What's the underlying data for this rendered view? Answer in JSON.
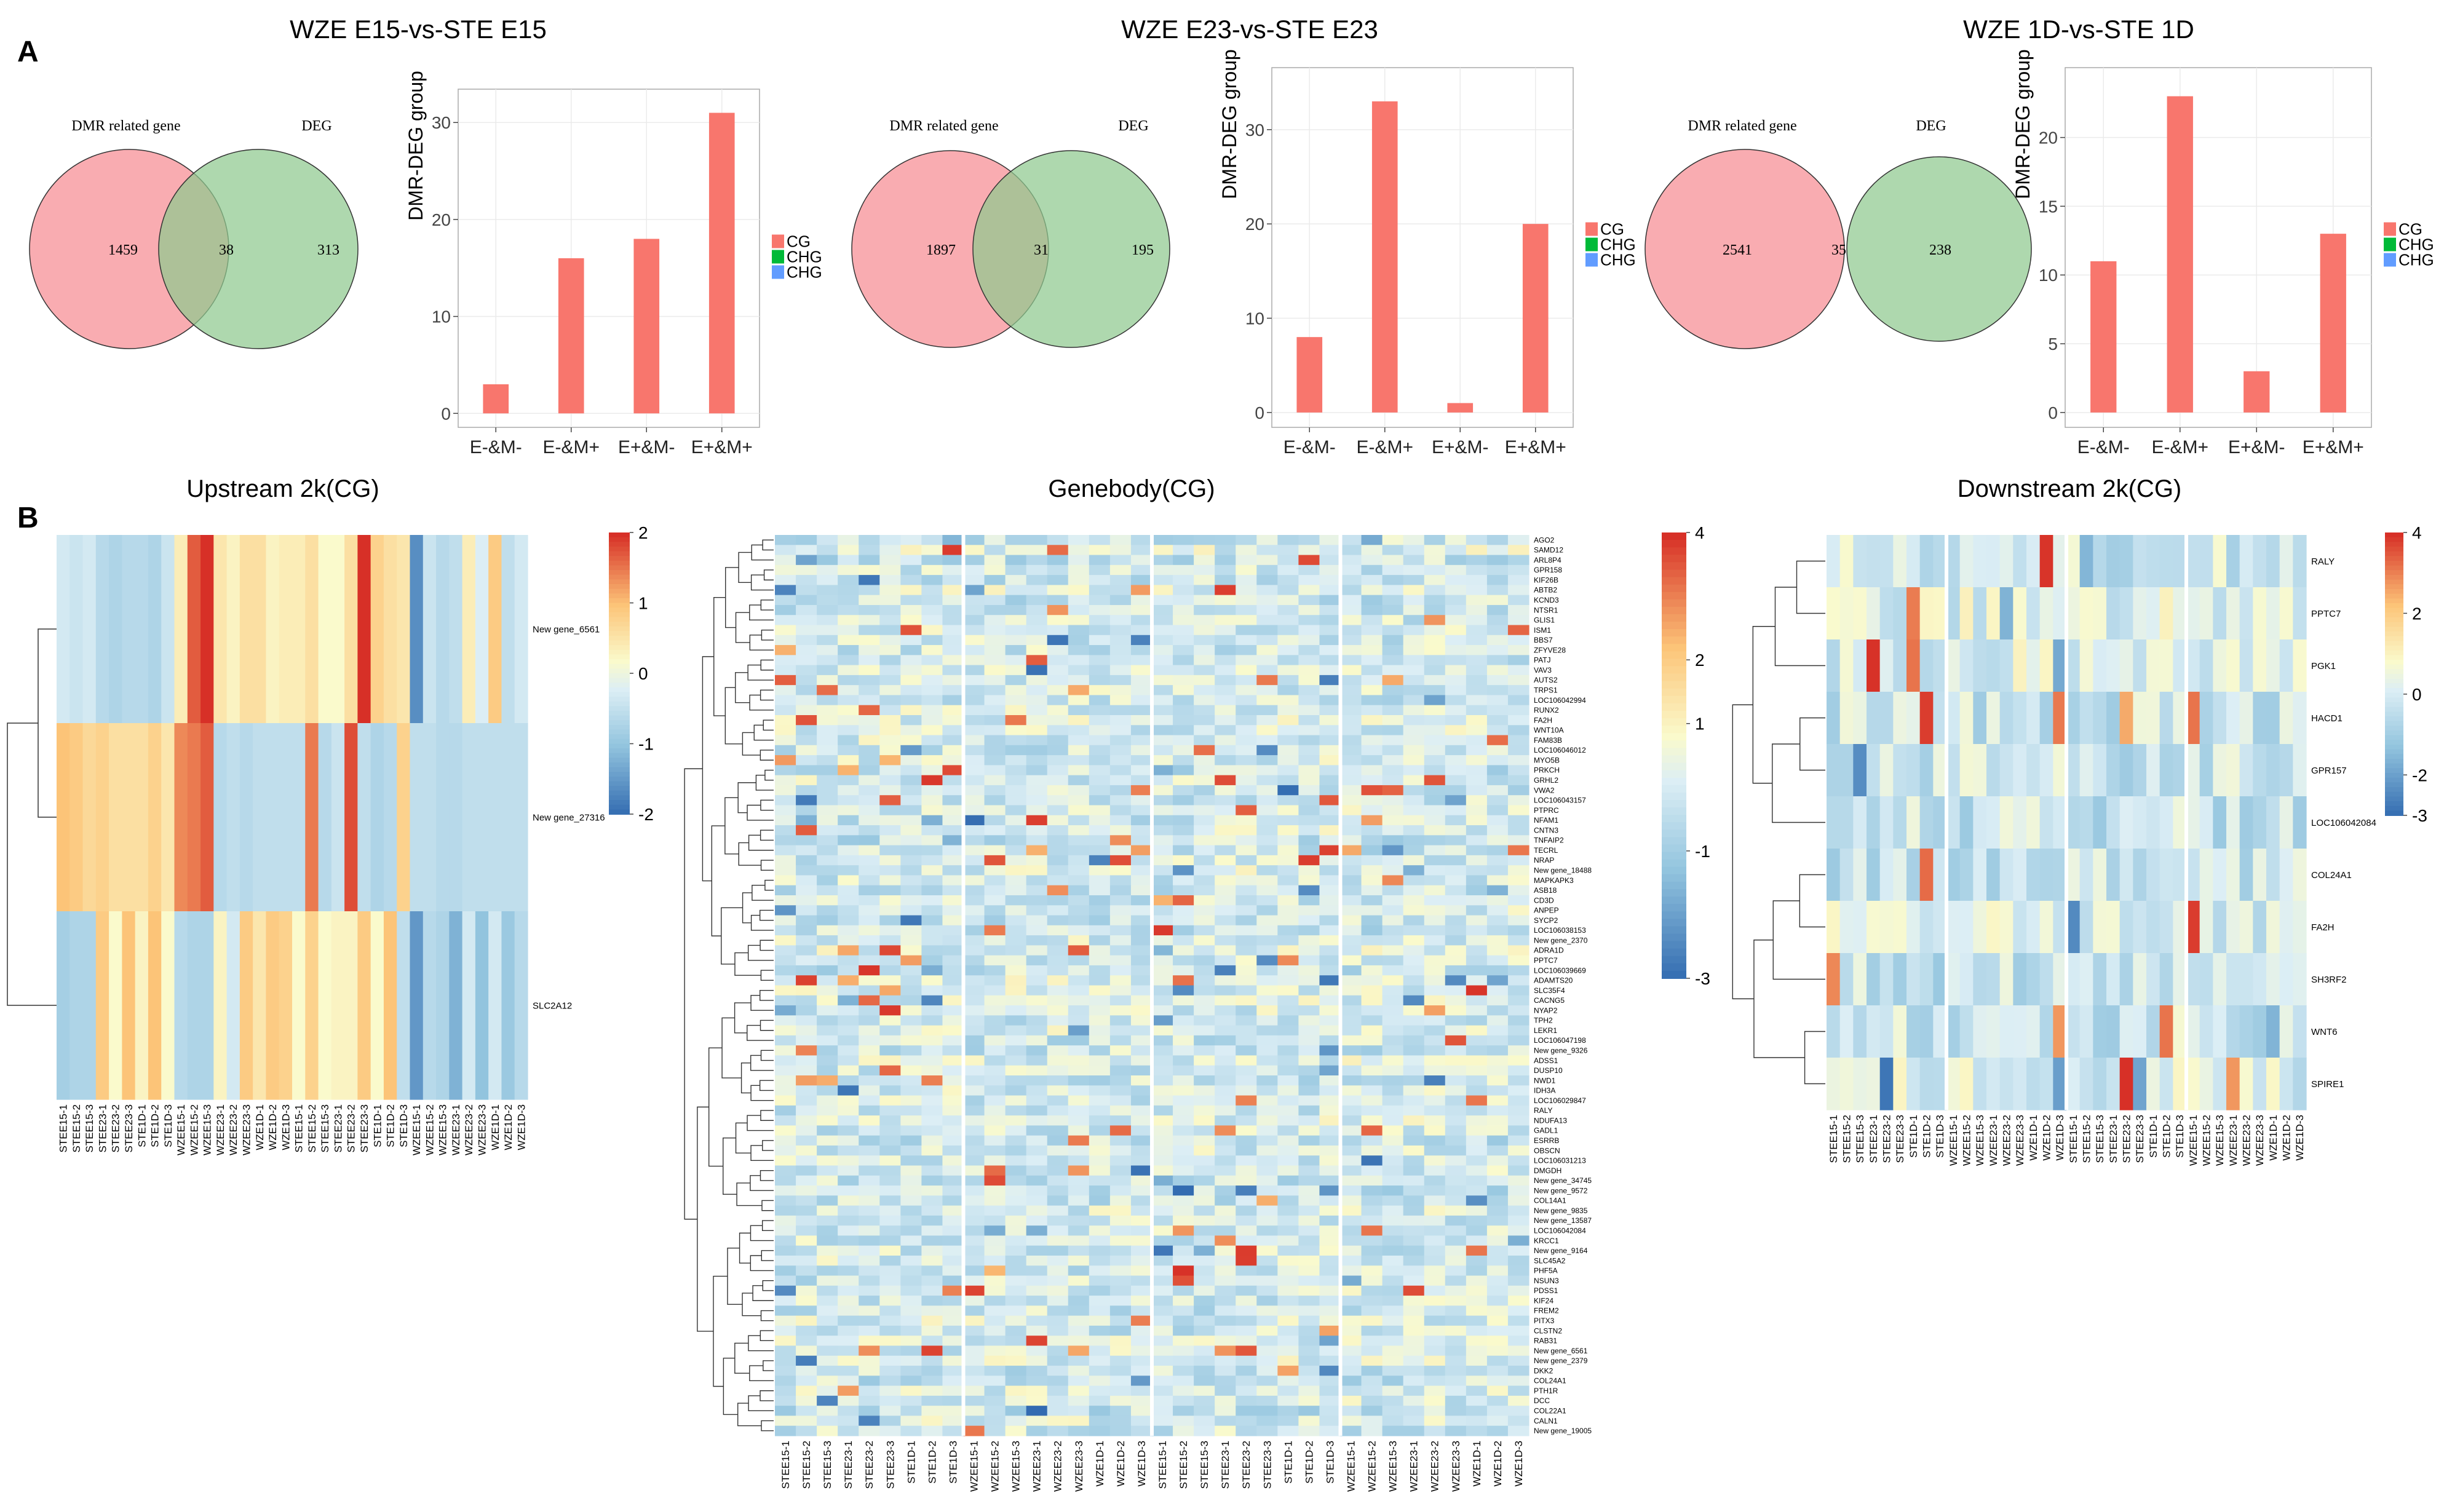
{
  "figure": {
    "panel_a_label": "A",
    "panel_b_label": "B",
    "axis_ylabel": "DMR-DEG group",
    "venn_left_label": "DMR related gene",
    "venn_right_label": "DEG",
    "legend_entries": [
      "CG",
      "CHG",
      "CHG"
    ],
    "legend_colors": [
      "#F8766D",
      "#00BA38",
      "#619CFF"
    ]
  },
  "chart_data": [
    {
      "type": "venn",
      "title": "WZE E15-vs-STE E15",
      "sets": [
        "DMR related gene",
        "DEG"
      ],
      "only_left": 1459,
      "overlap": 38,
      "only_right": 313
    },
    {
      "type": "bar",
      "title": "WZE E15-vs-STE E15",
      "ylabel": "DMR-DEG group",
      "categories": [
        "E-&M-",
        "E-&M+",
        "E+&M-",
        "E+&M+"
      ],
      "series": [
        {
          "name": "CG",
          "values": [
            3,
            16,
            18,
            31
          ]
        }
      ],
      "ylim": [
        0,
        32
      ],
      "yticks": [
        0,
        10,
        20,
        30
      ],
      "grid": true
    },
    {
      "type": "venn",
      "title": "WZE E23-vs-STE E23",
      "sets": [
        "DMR related gene",
        "DEG"
      ],
      "only_left": 1897,
      "overlap": 31,
      "only_right": 195
    },
    {
      "type": "bar",
      "title": "WZE E23-vs-STE E23",
      "ylabel": "DMR-DEG group",
      "categories": [
        "E-&M-",
        "E-&M+",
        "E+&M-",
        "E+&M+"
      ],
      "series": [
        {
          "name": "CG",
          "values": [
            8,
            33,
            1,
            20
          ]
        }
      ],
      "ylim": [
        0,
        35
      ],
      "yticks": [
        0,
        10,
        20,
        30
      ],
      "grid": true
    },
    {
      "type": "venn",
      "title": "WZE 1D-vs-STE 1D",
      "sets": [
        "DMR related gene",
        "DEG"
      ],
      "only_left": 2541,
      "overlap": 35,
      "only_right": 238
    },
    {
      "type": "bar",
      "title": "WZE 1D-vs-STE 1D",
      "ylabel": "DMR-DEG group",
      "categories": [
        "E-&M-",
        "E-&M+",
        "E+&M-",
        "E+&M+"
      ],
      "series": [
        {
          "name": "CG",
          "values": [
            11,
            23,
            3,
            13
          ]
        }
      ],
      "ylim": [
        0,
        24
      ],
      "yticks": [
        0,
        5,
        10,
        15,
        20
      ],
      "grid": true
    },
    {
      "type": "heatmap",
      "title": "Upstream 2k(CG)",
      "columns": [
        "STEE15-1",
        "STEE15-2",
        "STEE15-3",
        "STEE23-1",
        "STEE23-2",
        "STEE23-3",
        "STE1D-1",
        "STE1D-2",
        "STE1D-3",
        "WZEE15-1",
        "WZEE15-2",
        "WZEE15-3",
        "WZEE23-1",
        "WZEE23-2",
        "WZEE23-3",
        "WZE1D-1",
        "WZE1D-2",
        "WZE1D-3",
        "STEE15-1",
        "STEE15-2",
        "STEE15-3",
        "STEE23-1",
        "STEE23-2",
        "STEE23-3",
        "STE1D-1",
        "STE1D-2",
        "STE1D-3",
        "WZEE15-1",
        "WZEE15-2",
        "WZEE15-3",
        "WZEE23-1",
        "WZEE23-2",
        "WZEE23-3",
        "WZE1D-1",
        "WZE1D-2",
        "WZE1D-3"
      ],
      "rows": [
        "New gene_6561",
        "New gene_27316",
        "SLC2A12"
      ],
      "scale": [
        -2,
        2
      ],
      "colorbar_ticks": [
        2,
        1,
        0,
        -1,
        -2
      ],
      "values": [
        [
          -0.3,
          -0.4,
          -0.3,
          -0.6,
          -0.7,
          -0.6,
          -0.6,
          -0.7,
          -0.4,
          0.4,
          1.7,
          2.0,
          0.5,
          0.3,
          0.6,
          0.6,
          0.3,
          0.4,
          0.4,
          0.6,
          0.2,
          0.2,
          0.6,
          2.0,
          0.8,
          0.6,
          0.5,
          -1.6,
          -0.4,
          -0.6,
          -0.5,
          0.4,
          -0.2,
          0.9,
          -0.5,
          -0.3
        ],
        [
          1.0,
          0.9,
          0.7,
          0.8,
          0.6,
          0.6,
          0.6,
          0.8,
          0.5,
          1.4,
          1.5,
          1.7,
          -0.6,
          -0.5,
          -0.6,
          -0.5,
          -0.5,
          -0.5,
          -0.5,
          1.5,
          -0.6,
          -0.4,
          1.8,
          -0.5,
          -0.7,
          -0.6,
          0.8,
          -0.5,
          -0.5,
          -0.6,
          -0.6,
          -0.5,
          -0.5,
          -0.5,
          -0.5,
          -0.5
        ],
        [
          -0.8,
          -0.7,
          -0.7,
          0.9,
          0.2,
          1.0,
          0.3,
          1.0,
          0.2,
          -0.6,
          -0.7,
          -0.7,
          0.3,
          -0.3,
          0.9,
          0.5,
          0.9,
          0.8,
          0.2,
          0.8,
          0.2,
          0.3,
          0.3,
          0.9,
          0.2,
          1.0,
          -0.5,
          -1.5,
          -0.6,
          -0.7,
          -1.2,
          -0.3,
          -1.0,
          -0.3,
          -0.9,
          -0.6
        ]
      ]
    },
    {
      "type": "heatmap",
      "title": "Genebody(CG)",
      "columns": [
        "STEE15-1",
        "STEE15-2",
        "STEE15-3",
        "STEE23-1",
        "STEE23-2",
        "STEE23-3",
        "STE1D-1",
        "STE1D-2",
        "STE1D-3",
        "WZEE15-1",
        "WZEE15-2",
        "WZEE15-3",
        "WZEE23-1",
        "WZEE23-2",
        "WZEE23-3",
        "WZE1D-1",
        "WZE1D-2",
        "WZE1D-3",
        "STEE15-1",
        "STEE15-2",
        "STEE15-3",
        "STEE23-1",
        "STEE23-2",
        "STEE23-3",
        "STE1D-1",
        "STE1D-2",
        "STE1D-3",
        "WZEE15-1",
        "WZEE15-2",
        "WZEE15-3",
        "WZEE23-1",
        "WZEE23-2",
        "WZEE23-3",
        "WZE1D-1",
        "WZE1D-2",
        "WZE1D-3"
      ],
      "rows": [
        "AGO2",
        "SAMD12",
        "ARL8P4",
        "GPR158",
        "KIF26B",
        "ABTB2",
        "KCND3",
        "NTSR1",
        "GLIS1",
        "ISM1",
        "BBS7",
        "ZFYVE28",
        "PATJ",
        "VAV3",
        "AUTS2",
        "TRPS1",
        "LOC106042994",
        "RUNX2",
        "FA2H",
        "WNT10A",
        "FAM83B",
        "LOC106046012",
        "MYO5B",
        "PRKCH",
        "GRHL2",
        "VWA2",
        "LOC106043157",
        "PTPRC",
        "NFAM1",
        "CNTN3",
        "TNFAIP2",
        "TECRL",
        "NRAP",
        "New gene_18488",
        "MAPKAPK3",
        "ASB18",
        "CD3D",
        "ANPEP",
        "SYCP2",
        "LOC106038153",
        "New gene_2370",
        "ADRA1D",
        "PPTC7",
        "LOC106039669",
        "ADAMTS20",
        "SLC35F4",
        "CACNG5",
        "NYAP2",
        "TPH2",
        "LEKR1",
        "LOC106047198",
        "New gene_9326",
        "ADSS1",
        "DUSP10",
        "NWD1",
        "IDH3A",
        "LOC106029847",
        "RALY",
        "NDUFA13",
        "GADL1",
        "ESRRB",
        "OBSCN",
        "LOC106031213",
        "DMGDH",
        "New gene_34745",
        "New gene_9572",
        "COL14A1",
        "New gene_9835",
        "New gene_13587",
        "LOC106042084",
        "KRCC1",
        "New gene_9164",
        "SLC45A2",
        "PHF5A",
        "NSUN3",
        "PDSS1",
        "KIF24",
        "FREM2",
        "PITX3",
        "CLSTN2",
        "RAB31",
        "New gene_6561",
        "New gene_2379",
        "DKK2",
        "COL24A1",
        "PTH1R",
        "DCC",
        "COL22A1",
        "CALN1",
        "New gene_19005"
      ],
      "scale": [
        -3,
        4
      ],
      "colorbar_ticks": [
        4,
        2,
        1,
        -1,
        -3
      ]
    },
    {
      "type": "heatmap",
      "title": "Downstream 2k(CG)",
      "columns": [
        "STEE15-1",
        "STEE15-2",
        "STEE15-3",
        "STEE23-1",
        "STEE23-2",
        "STEE23-3",
        "STE1D-1",
        "STE1D-2",
        "STE1D-3",
        "WZEE15-1",
        "WZEE15-2",
        "WZEE15-3",
        "WZEE23-1",
        "WZEE23-2",
        "WZEE23-3",
        "WZE1D-1",
        "WZE1D-2",
        "WZE1D-3",
        "STEE15-1",
        "STEE15-2",
        "STEE15-3",
        "STEE23-1",
        "STEE23-2",
        "STEE23-3",
        "STE1D-1",
        "STE1D-2",
        "STE1D-3",
        "WZEE15-1",
        "WZEE15-2",
        "WZEE15-3",
        "WZEE23-1",
        "WZEE23-2",
        "WZEE23-3",
        "WZE1D-1",
        "WZE1D-2",
        "WZE1D-3"
      ],
      "rows": [
        "RALY",
        "PPTC7",
        "PGK1",
        "HACD1",
        "GPR157",
        "LOC106042084",
        "COL24A1",
        "FA2H",
        "SH3RF2",
        "WNT6",
        "SPIRE1"
      ],
      "scale": [
        -3,
        4
      ],
      "colorbar_ticks": [
        4,
        2,
        0,
        -2,
        -3
      ]
    }
  ]
}
